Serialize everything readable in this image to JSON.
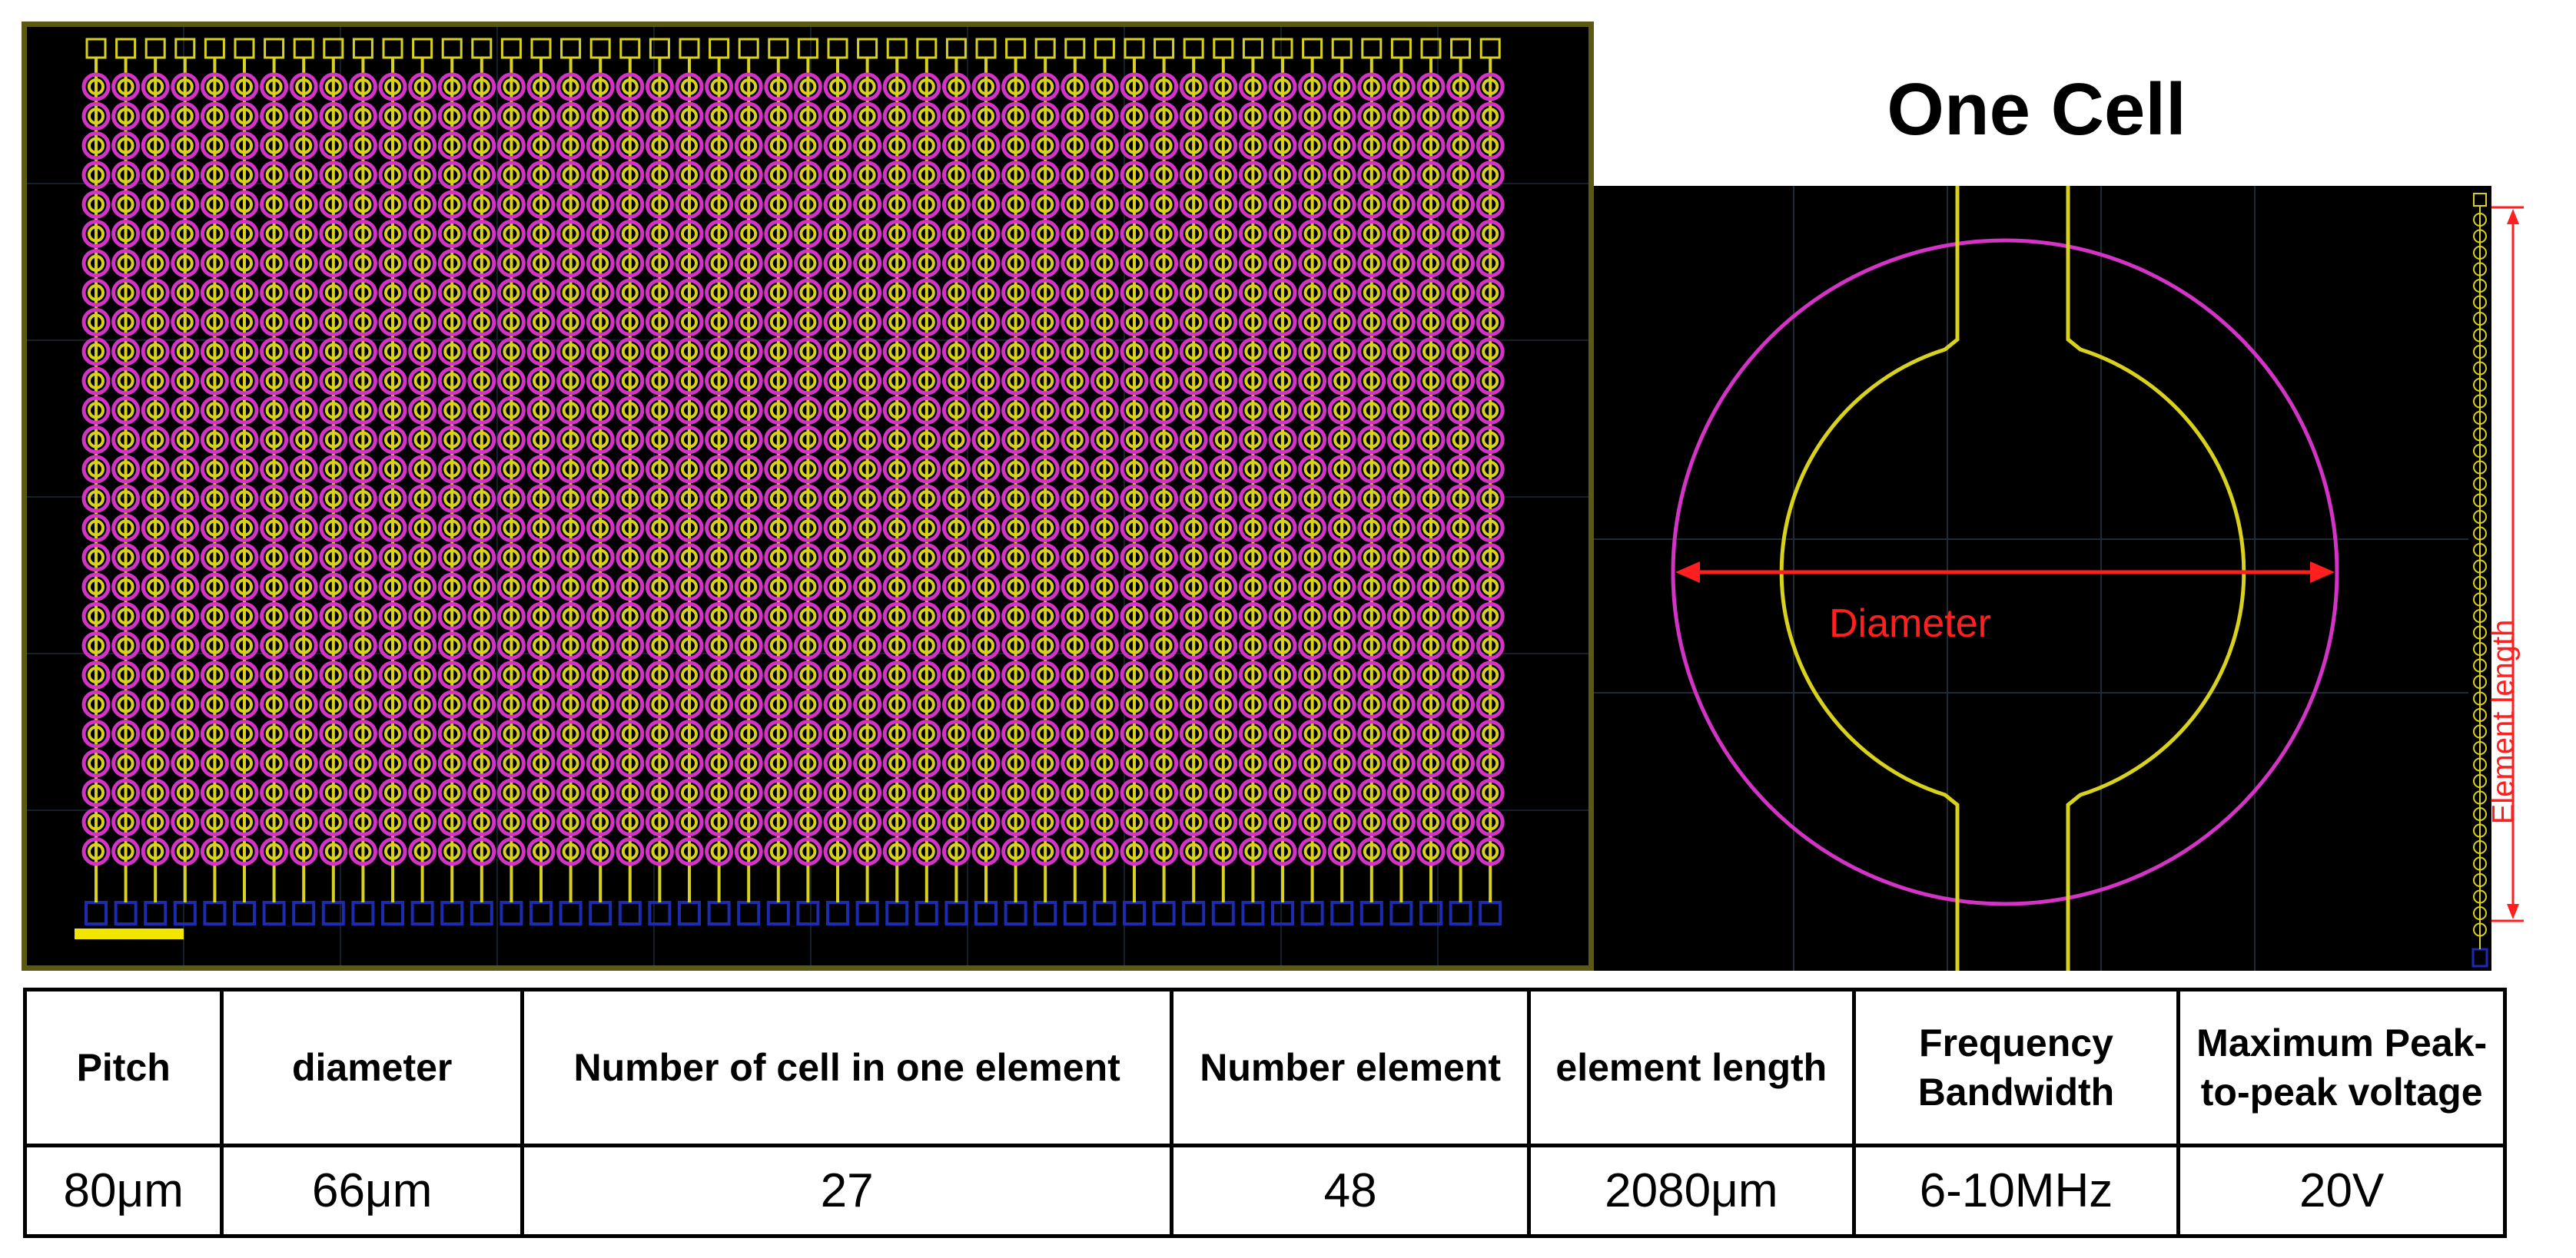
{
  "diagram": {
    "cell_view_title": "One Cell",
    "callouts": {
      "diameter": "Diameter",
      "element_length": "Element length"
    },
    "colors": {
      "background": "#000000",
      "metal_yellow": "#d9d21c",
      "membrane_magenta": "#d434c6",
      "pad_blue": "#1c2bb0",
      "callout_red": "#ff1f1f",
      "grid": "#1f2a33"
    },
    "array": {
      "columns": 48,
      "cells_per_element": 27
    }
  },
  "table": {
    "headers": [
      "Pitch",
      "diameter",
      "Number of cell in one element",
      "Number element",
      "element length",
      "Frequency Bandwidth",
      "Maximum Peak-to-peak voltage"
    ],
    "values": [
      "80μm",
      "66μm",
      "27",
      "48",
      "2080μm",
      "6-10MHz",
      "20V"
    ]
  }
}
